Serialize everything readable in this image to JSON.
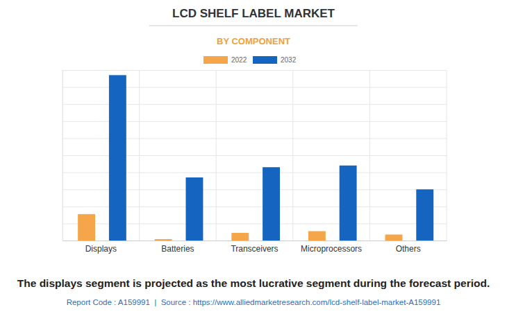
{
  "chart_data": {
    "type": "bar",
    "title": "LCD SHELF LABEL MARKET",
    "subtitle": "BY COMPONENT",
    "annotations": [
      "The displays segment is projected as the most lucrative segment during the forecast period.",
      "Report Code : A159991  |  Source : https://www.alliedmarketresearch.com/lcd-shelf-label-market-A159991"
    ],
    "categories": [
      "Displays",
      "Batteries",
      "Transceivers",
      "Microprocessors",
      "Others"
    ],
    "series": [
      {
        "name": "2022",
        "color": "#f5a54a",
        "values": [
          1.55,
          0.08,
          0.45,
          0.55,
          0.35
        ]
      },
      {
        "name": "2032",
        "color": "#1565c0",
        "values": [
          9.7,
          3.7,
          4.3,
          4.4,
          3.0
        ]
      }
    ],
    "ylim": [
      0,
      10
    ],
    "yticks": [
      0,
      1,
      2,
      3,
      4,
      5,
      6,
      7,
      8,
      9,
      10
    ],
    "grid": true,
    "legend": "top",
    "tick_labels": "x"
  }
}
